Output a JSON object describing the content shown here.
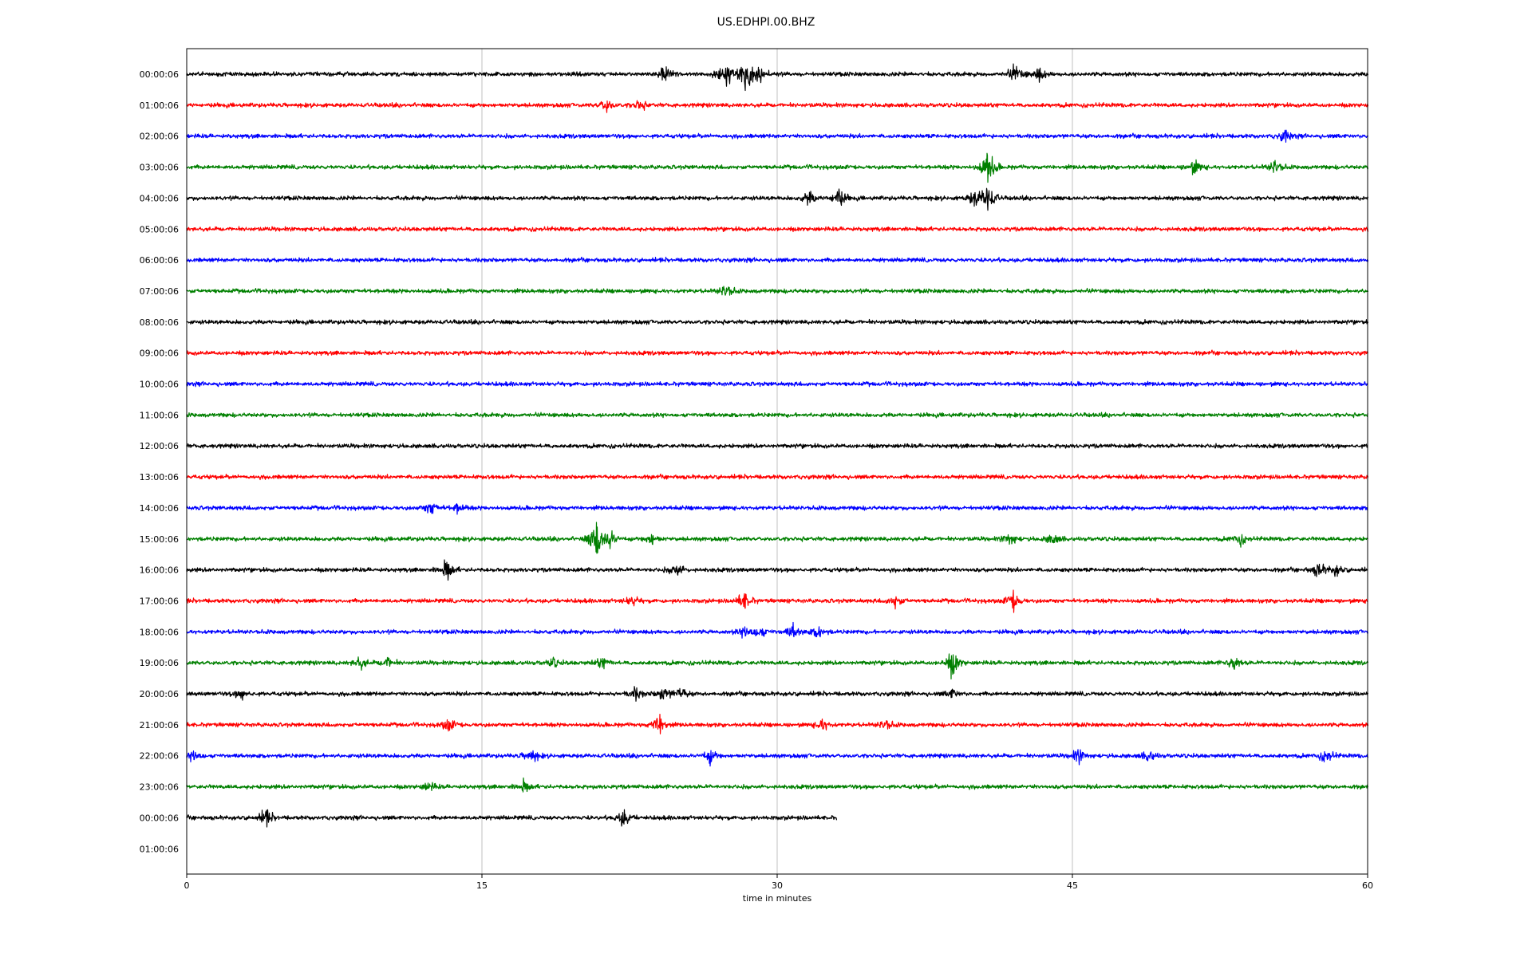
{
  "chart_data": {
    "type": "line",
    "title": "US.EDHPI.00.BHZ",
    "xlabel": "time in minutes",
    "ylabel": "",
    "xlim": [
      0,
      60
    ],
    "x_ticks": [
      "0",
      "15",
      "30",
      "45",
      "60"
    ],
    "grid": "vertical lines at 15, 30, 45",
    "row_colors": [
      "#000000",
      "#ff0000",
      "#0000ff",
      "#008000"
    ],
    "rows": [
      {
        "label": "00:00:06",
        "end_minute": 60,
        "events": [
          {
            "t": 24.3,
            "a": 2.2
          },
          {
            "t": 27.4,
            "a": 4.5
          },
          {
            "t": 28.4,
            "a": 3.6
          },
          {
            "t": 29.0,
            "a": 2.0
          },
          {
            "t": 42.1,
            "a": 2.0
          },
          {
            "t": 43.3,
            "a": 1.4
          }
        ]
      },
      {
        "label": "01:00:06",
        "end_minute": 60,
        "events": [
          {
            "t": 21.3,
            "a": 1.6
          },
          {
            "t": 23.0,
            "a": 1.2
          }
        ]
      },
      {
        "label": "02:00:06",
        "end_minute": 60,
        "events": [
          {
            "t": 55.8,
            "a": 1.3
          }
        ]
      },
      {
        "label": "03:00:06",
        "end_minute": 60,
        "events": [
          {
            "t": 40.7,
            "a": 4.0
          },
          {
            "t": 51.2,
            "a": 1.6
          },
          {
            "t": 55.3,
            "a": 1.6
          }
        ]
      },
      {
        "label": "04:00:06",
        "end_minute": 60,
        "events": [
          {
            "t": 31.6,
            "a": 1.6
          },
          {
            "t": 33.1,
            "a": 2.4
          },
          {
            "t": 40.0,
            "a": 1.6
          },
          {
            "t": 40.7,
            "a": 3.6
          }
        ]
      },
      {
        "label": "05:00:06",
        "end_minute": 60,
        "events": []
      },
      {
        "label": "06:00:06",
        "end_minute": 60,
        "events": []
      },
      {
        "label": "07:00:06",
        "end_minute": 60,
        "events": [
          {
            "t": 27.4,
            "a": 1.6
          }
        ]
      },
      {
        "label": "08:00:06",
        "end_minute": 60,
        "events": []
      },
      {
        "label": "09:00:06",
        "end_minute": 60,
        "events": []
      },
      {
        "label": "10:00:06",
        "end_minute": 60,
        "events": []
      },
      {
        "label": "11:00:06",
        "end_minute": 60,
        "events": []
      },
      {
        "label": "12:00:06",
        "end_minute": 60,
        "events": []
      },
      {
        "label": "13:00:06",
        "end_minute": 60,
        "events": []
      },
      {
        "label": "14:00:06",
        "end_minute": 60,
        "events": [
          {
            "t": 12.4,
            "a": 1.6
          },
          {
            "t": 13.8,
            "a": 1.2
          }
        ]
      },
      {
        "label": "15:00:06",
        "end_minute": 60,
        "events": [
          {
            "t": 20.8,
            "a": 4.8
          },
          {
            "t": 21.5,
            "a": 2.4
          },
          {
            "t": 23.6,
            "a": 1.4
          },
          {
            "t": 41.8,
            "a": 1.4
          },
          {
            "t": 44.0,
            "a": 1.2
          },
          {
            "t": 53.5,
            "a": 1.2
          }
        ]
      },
      {
        "label": "16:00:06",
        "end_minute": 60,
        "events": [
          {
            "t": 13.2,
            "a": 2.2
          },
          {
            "t": 24.9,
            "a": 1.6
          },
          {
            "t": 57.5,
            "a": 1.6
          },
          {
            "t": 58.4,
            "a": 1.2
          }
        ]
      },
      {
        "label": "17:00:06",
        "end_minute": 60,
        "events": [
          {
            "t": 22.6,
            "a": 1.2
          },
          {
            "t": 28.3,
            "a": 2.2
          },
          {
            "t": 36.0,
            "a": 1.4
          },
          {
            "t": 42.0,
            "a": 2.2
          }
        ]
      },
      {
        "label": "18:00:06",
        "end_minute": 60,
        "events": [
          {
            "t": 28.4,
            "a": 1.4
          },
          {
            "t": 29.1,
            "a": 1.4
          },
          {
            "t": 30.8,
            "a": 1.6
          },
          {
            "t": 32.1,
            "a": 1.4
          }
        ]
      },
      {
        "label": "19:00:06",
        "end_minute": 60,
        "events": [
          {
            "t": 8.8,
            "a": 1.4
          },
          {
            "t": 10.2,
            "a": 1.2
          },
          {
            "t": 18.6,
            "a": 1.0
          },
          {
            "t": 21.1,
            "a": 1.2
          },
          {
            "t": 38.9,
            "a": 3.0
          },
          {
            "t": 53.2,
            "a": 1.6
          }
        ]
      },
      {
        "label": "20:00:06",
        "end_minute": 60,
        "events": [
          {
            "t": 2.8,
            "a": 1.2
          },
          {
            "t": 22.8,
            "a": 1.4
          },
          {
            "t": 24.2,
            "a": 1.6
          },
          {
            "t": 25.1,
            "a": 1.4
          },
          {
            "t": 38.9,
            "a": 1.0
          }
        ]
      },
      {
        "label": "21:00:06",
        "end_minute": 60,
        "events": [
          {
            "t": 13.3,
            "a": 1.4
          },
          {
            "t": 24.0,
            "a": 2.6
          },
          {
            "t": 32.3,
            "a": 1.4
          },
          {
            "t": 35.5,
            "a": 1.2
          }
        ]
      },
      {
        "label": "22:00:06",
        "end_minute": 60,
        "events": [
          {
            "t": 0.4,
            "a": 1.4
          },
          {
            "t": 17.5,
            "a": 1.6
          },
          {
            "t": 26.6,
            "a": 1.6
          },
          {
            "t": 45.3,
            "a": 1.6
          },
          {
            "t": 48.9,
            "a": 1.2
          },
          {
            "t": 57.9,
            "a": 1.4
          }
        ]
      },
      {
        "label": "23:00:06",
        "end_minute": 60,
        "events": [
          {
            "t": 12.3,
            "a": 1.0
          },
          {
            "t": 17.1,
            "a": 1.2
          }
        ]
      },
      {
        "label": "00:00:06",
        "end_minute": 33,
        "events": [
          {
            "t": 4.0,
            "a": 1.8
          },
          {
            "t": 22.2,
            "a": 2.0
          }
        ]
      },
      {
        "label": "01:00:06",
        "end_minute": 0,
        "events": []
      }
    ]
  }
}
